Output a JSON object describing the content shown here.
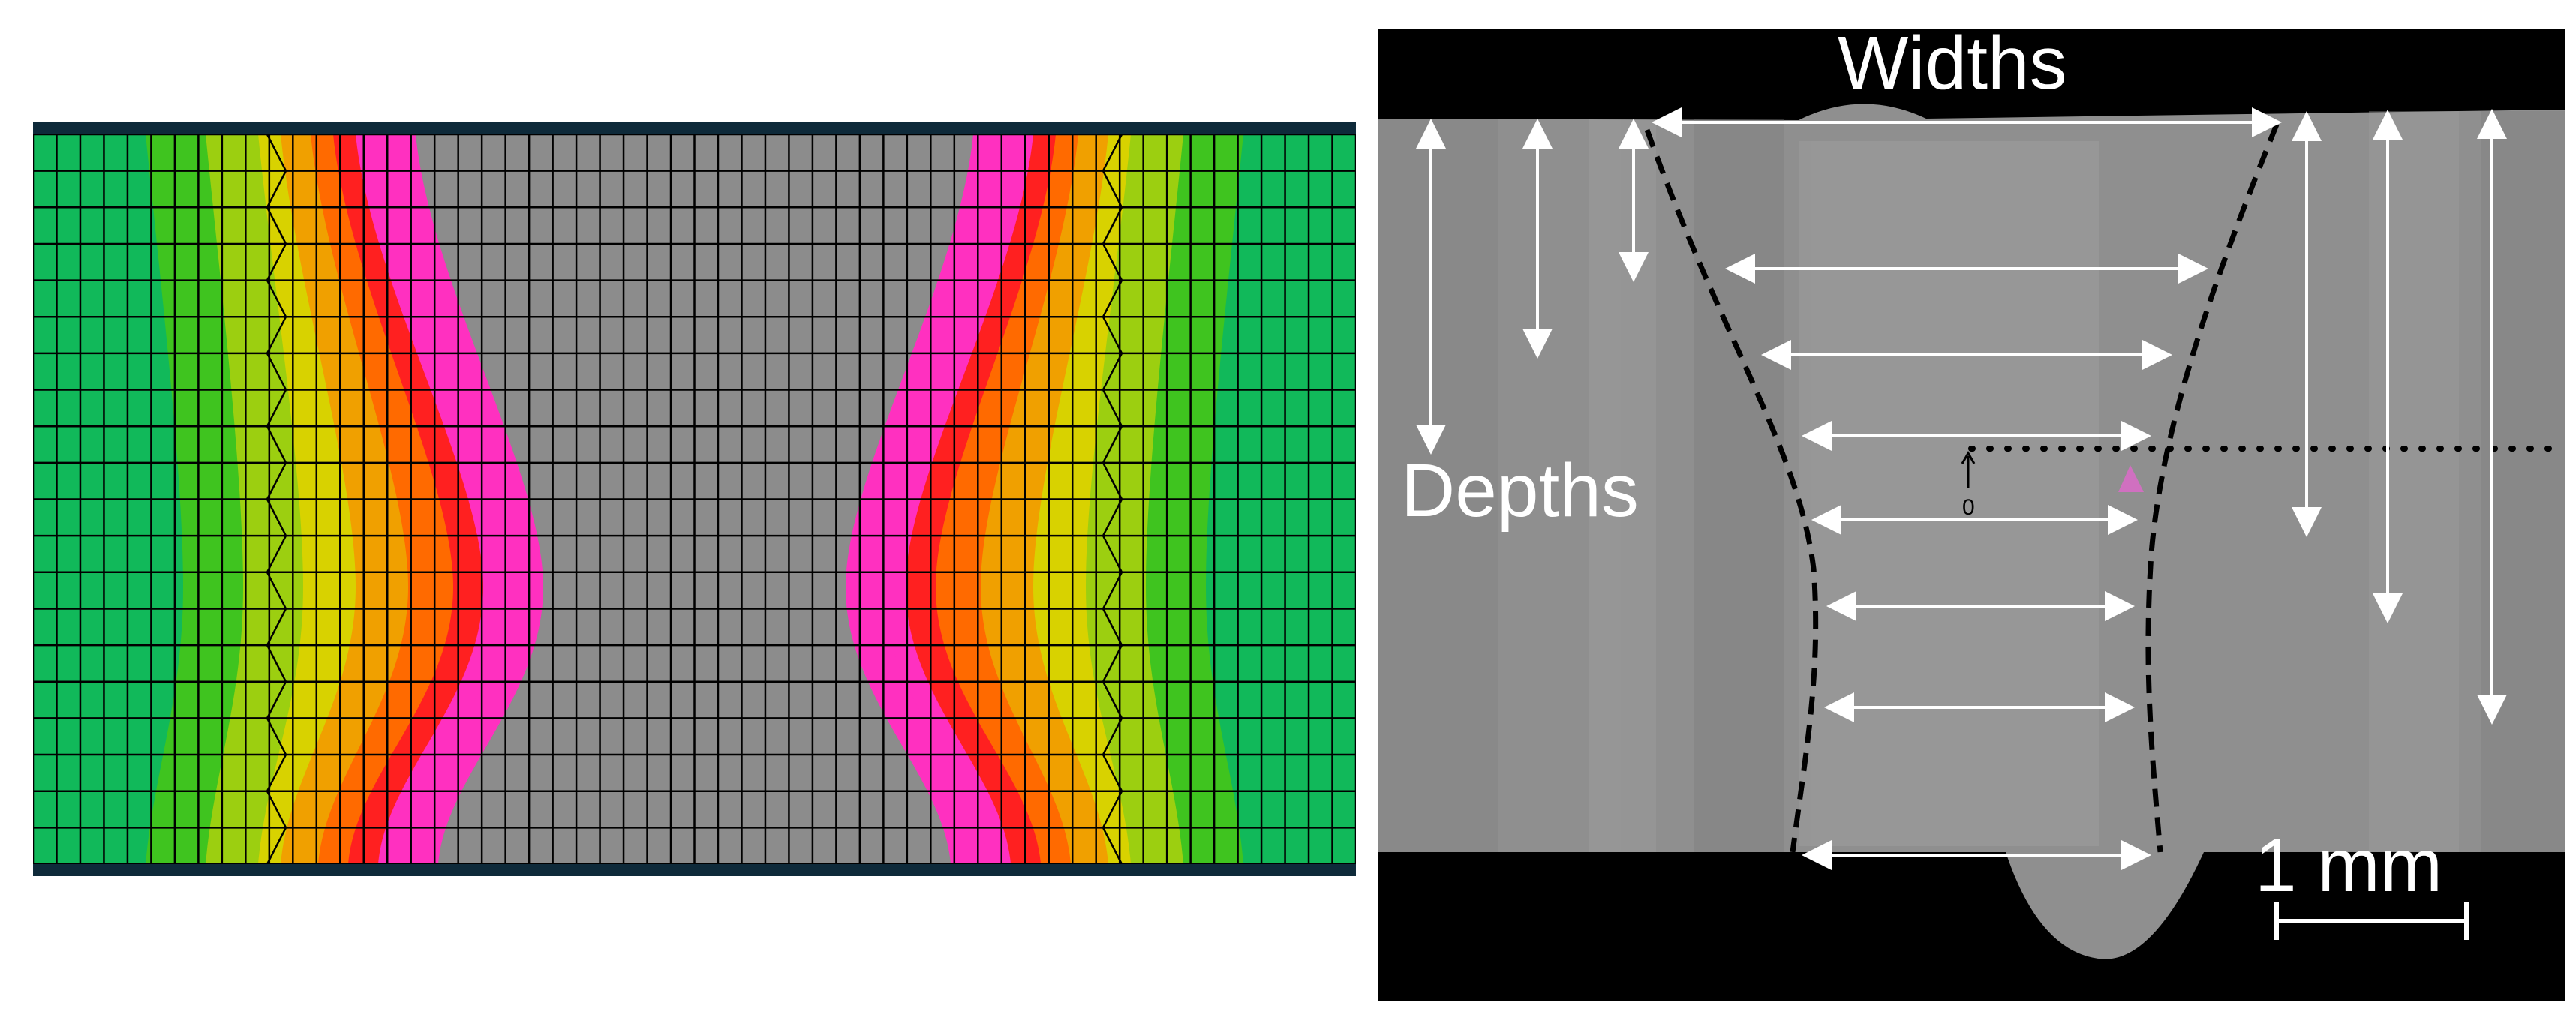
{
  "simulation_panel": {
    "color_bands": [
      "#1dbf7a",
      "#11b95a",
      "#3fc41f",
      "#9ccf10",
      "#d8d200",
      "#f0a000",
      "#ff6a00",
      "#ff2020",
      "#ff30c0",
      "#8c8c8c"
    ],
    "mesh_color": "#000000",
    "frame_color": "#0e2a3a"
  },
  "macrograph_panel": {
    "widths_label": "Widths",
    "depths_label": "Depths",
    "scale_bar_label": "1 mm",
    "small_marker_label": "0",
    "arrow_color": "#ffffff",
    "fusion_boundary_style": "dashed",
    "highlight_color": "#d070c0"
  }
}
